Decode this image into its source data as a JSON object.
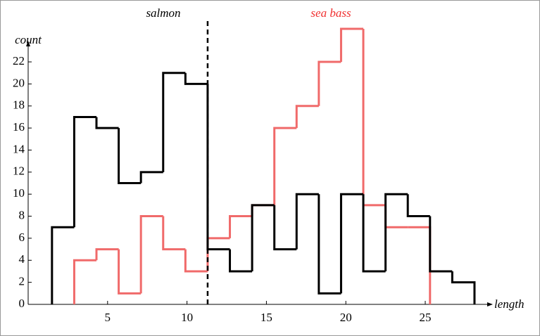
{
  "chart_data": {
    "type": "histogram",
    "annotations": [
      "salmon",
      "sea bass"
    ],
    "ylabel": "count",
    "xlabel": "length",
    "threshold": 11.3,
    "series": [
      {
        "name": "salmon",
        "color": "#000000",
        "bins": [
          1.5,
          2.9,
          4.3,
          5.7,
          7.1,
          8.5,
          9.9,
          11.3,
          12.7,
          14.1,
          15.5,
          16.9,
          18.3,
          19.7,
          21.1,
          22.5,
          23.9,
          25.3,
          26.7,
          28.1
        ],
        "values": [
          7,
          17,
          16,
          11,
          12,
          21,
          20,
          5,
          3,
          9,
          5,
          10,
          1,
          10,
          3,
          10,
          8,
          3,
          2
        ]
      },
      {
        "name": "sea bass",
        "color": "#f06a6a",
        "bins": [
          2.9,
          4.3,
          5.7,
          7.1,
          8.5,
          9.9,
          11.3,
          12.7,
          14.1,
          15.5,
          16.9,
          18.3,
          19.7,
          21.1,
          22.5,
          23.9,
          25.3
        ],
        "values": [
          4,
          5,
          1,
          8,
          5,
          3,
          6,
          8,
          9,
          16,
          18,
          22,
          25,
          9,
          7,
          7
        ]
      }
    ],
    "xlim": [
      0,
      28.9
    ],
    "ylim": [
      0,
      25
    ],
    "xticks": [
      5,
      10,
      15,
      20,
      25
    ],
    "yticks": [
      0,
      2,
      4,
      6,
      8,
      10,
      12,
      14,
      16,
      18,
      20,
      22
    ]
  }
}
